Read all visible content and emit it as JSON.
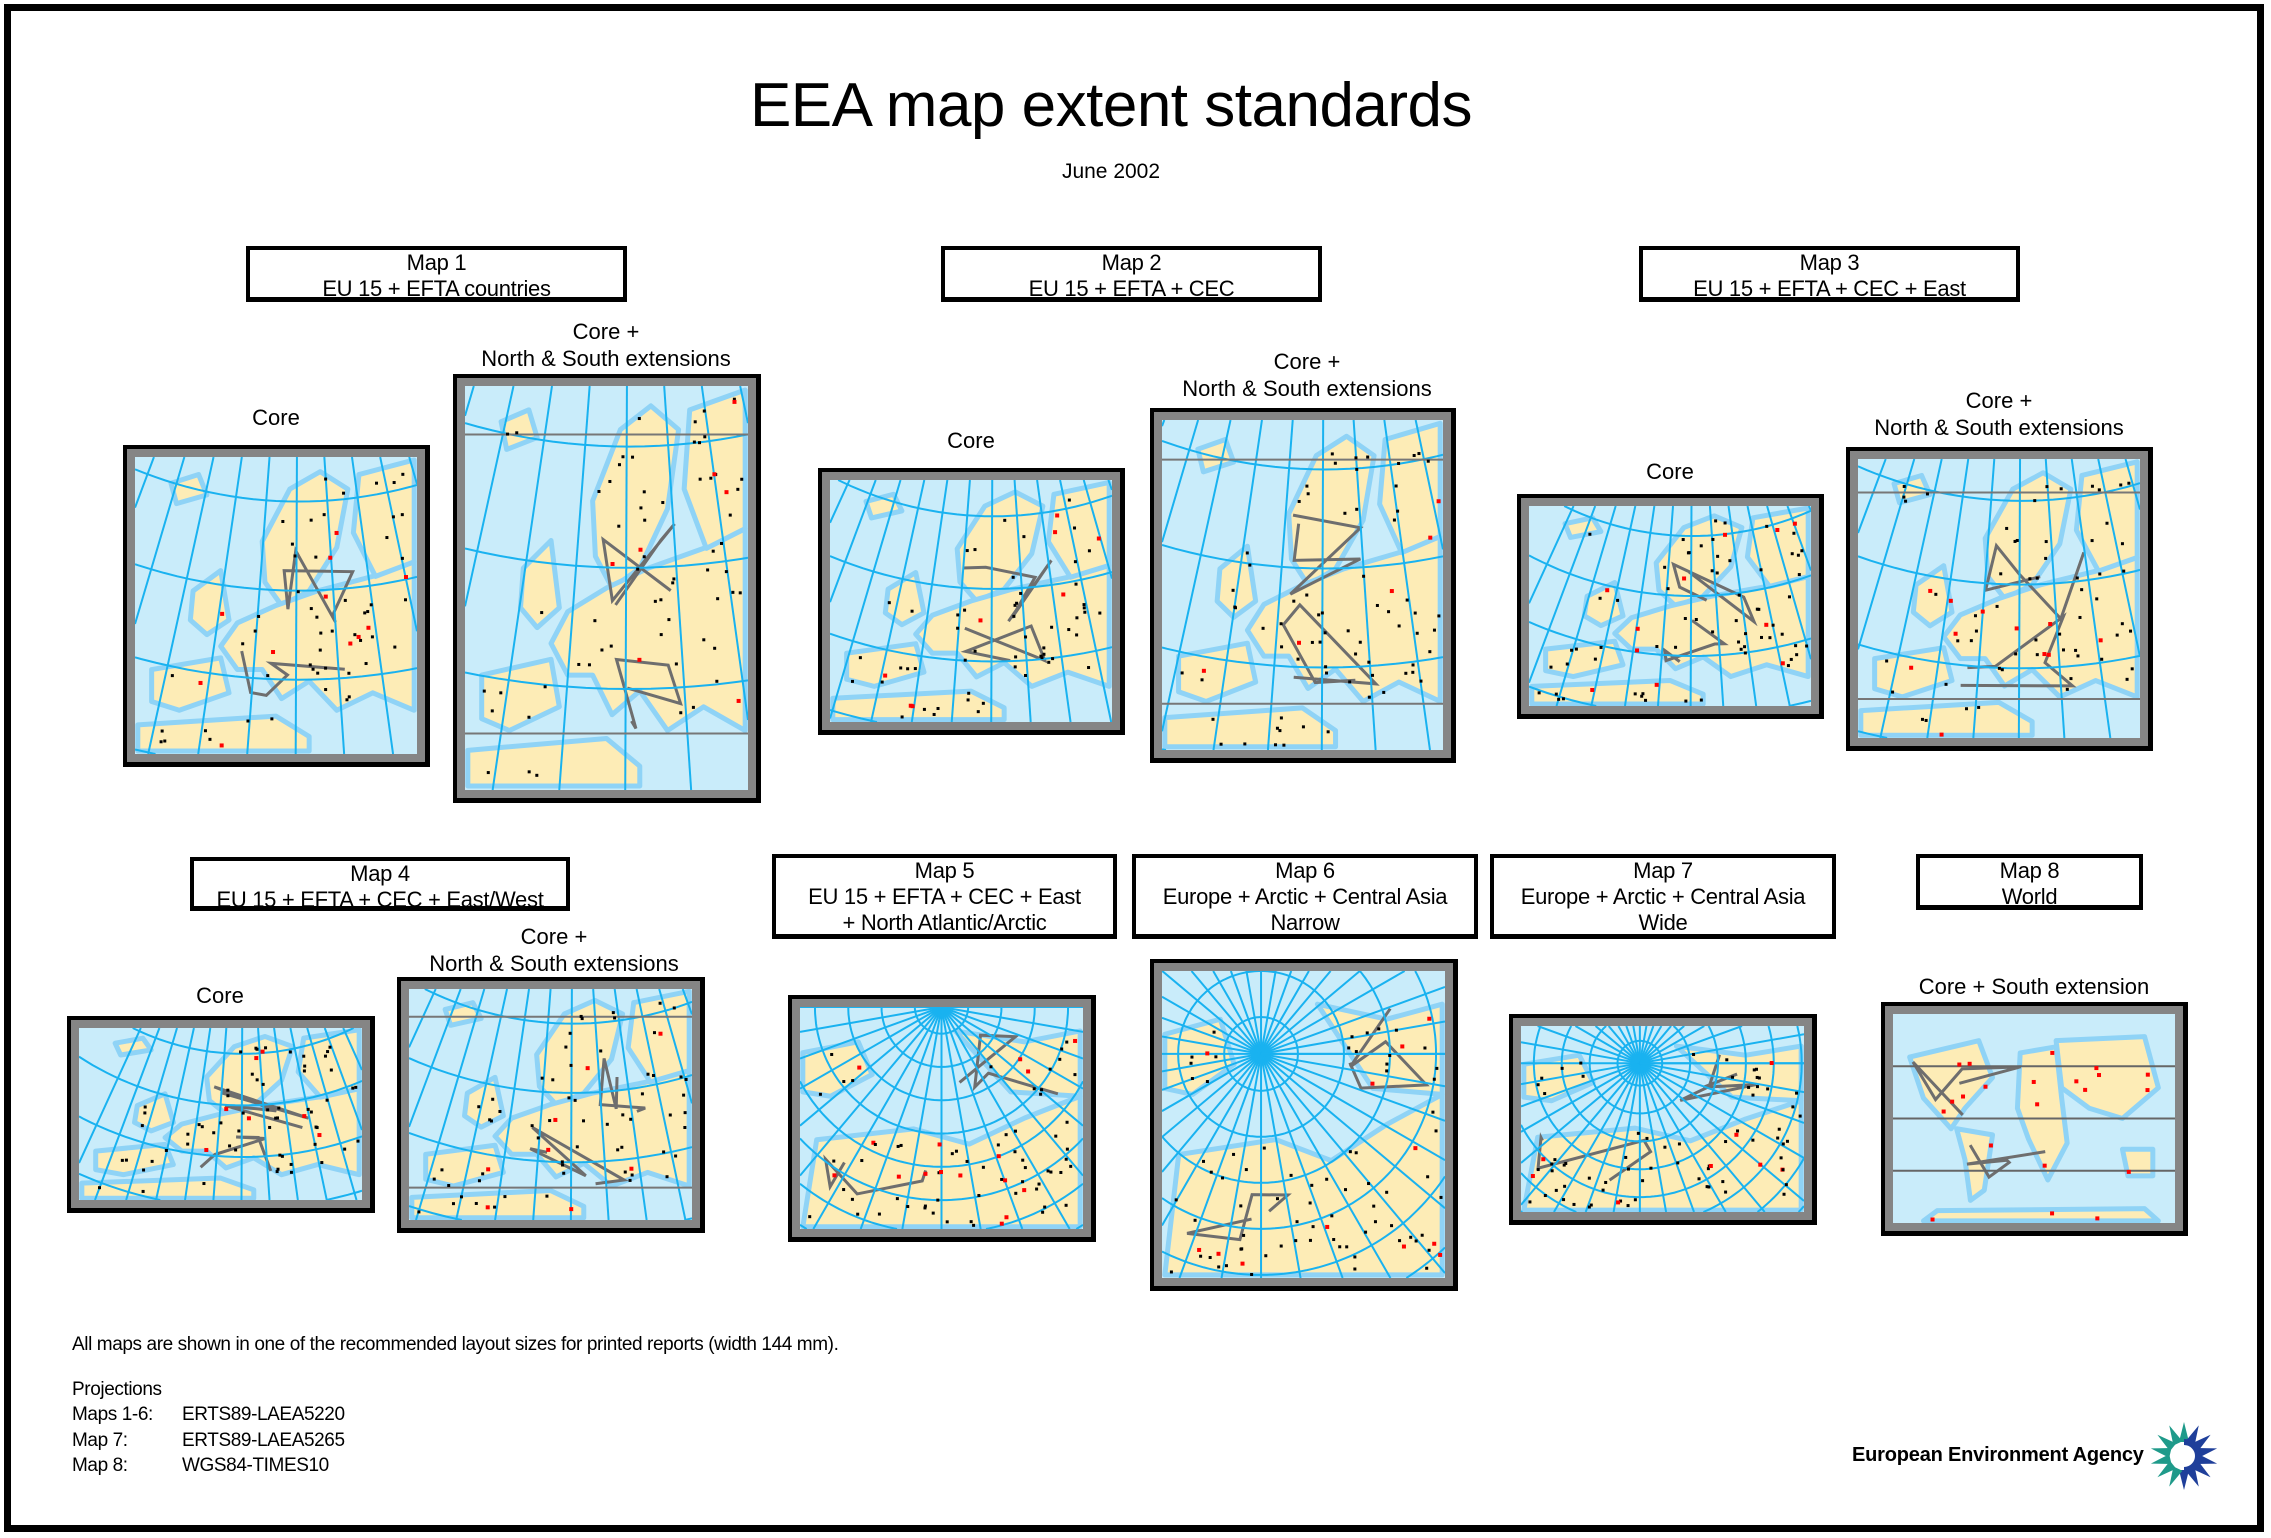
{
  "title": "EEA map extent standards",
  "subtitle": "June 2002",
  "colors": {
    "sea": "#c9ecfa",
    "land": "#fdecb6",
    "graticule": "#19b2f0",
    "coast": "#8fd3f6",
    "border": "#6e6e6e",
    "frame": "#858585",
    "city": "#000000",
    "capital": "#ff0000"
  },
  "maps": [
    {
      "label": [
        "Map 1",
        "EU 15 + EFTA countries"
      ],
      "views": [
        {
          "caption": [
            "Core"
          ]
        },
        {
          "caption": [
            "Core +",
            "North & South extensions"
          ]
        }
      ]
    },
    {
      "label": [
        "Map 2",
        "EU 15 + EFTA + CEC"
      ],
      "views": [
        {
          "caption": [
            "Core"
          ]
        },
        {
          "caption": [
            "Core +",
            "North & South extensions"
          ]
        }
      ]
    },
    {
      "label": [
        "Map 3",
        "EU 15 + EFTA + CEC + East"
      ],
      "views": [
        {
          "caption": [
            "Core"
          ]
        },
        {
          "caption": [
            "Core +",
            "North & South extensions"
          ]
        }
      ]
    },
    {
      "label": [
        "Map 4",
        "EU 15 + EFTA + CEC + East/West"
      ],
      "views": [
        {
          "caption": [
            "Core"
          ]
        },
        {
          "caption": [
            "Core +",
            "North & South extensions"
          ]
        }
      ]
    },
    {
      "label": [
        "Map 5",
        "EU 15 + EFTA + CEC + East",
        "+ North Atlantic/Arctic"
      ],
      "views": []
    },
    {
      "label": [
        "Map 6",
        "Europe + Arctic + Central Asia",
        "Narrow"
      ],
      "views": []
    },
    {
      "label": [
        "Map 7",
        "Europe + Arctic + Central Asia",
        "Wide"
      ],
      "views": []
    },
    {
      "label": [
        "Map 8",
        "World"
      ],
      "views": [
        {
          "caption": [
            "Core + South extension"
          ]
        }
      ]
    }
  ],
  "footnote": "All maps are shown in one of the recommended layout sizes for printed reports (width 144 mm).",
  "projections": {
    "heading": "Projections",
    "rows": [
      {
        "maps": "Maps 1-6:",
        "name": "ERTS89-LAEA5220"
      },
      {
        "maps": "Map 7:",
        "name": "ERTS89-LAEA5265"
      },
      {
        "maps": "Map 8:",
        "name": "WGS84-TIMES10"
      }
    ]
  },
  "logo": {
    "text": "European Environment Agency",
    "icon": "eea-sun-logo-icon",
    "colors": [
      "#1f9a8a",
      "#1f3f9a"
    ]
  }
}
